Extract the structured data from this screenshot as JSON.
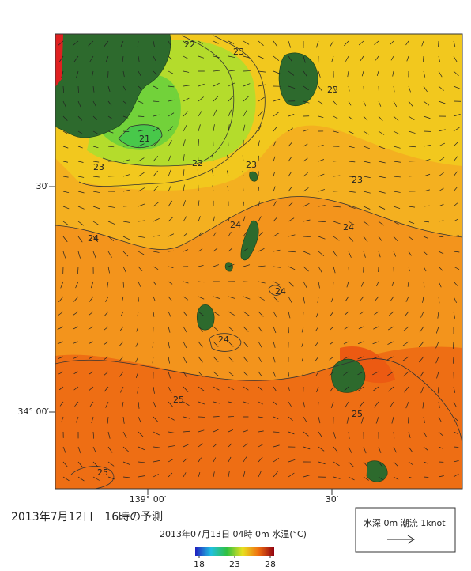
{
  "map": {
    "title": "2013年7月12日　16時の予測",
    "subtitle": "2013年07月13日 04時 0m 水温(°C)",
    "legend": "水深 0m 潮流 1knot",
    "lat_labels": [
      "30′",
      "34° 00′"
    ],
    "lon_labels": [
      "139° 00′",
      "30′"
    ],
    "contour_labels": [
      "22",
      "23",
      "23",
      "21",
      "23",
      "22",
      "23",
      "23",
      "24",
      "24",
      "24",
      "24",
      "24",
      "25",
      "25",
      "25"
    ],
    "colorbar": {
      "range": [
        18,
        28
      ],
      "ticks": [
        18,
        23,
        28
      ]
    }
  }
}
